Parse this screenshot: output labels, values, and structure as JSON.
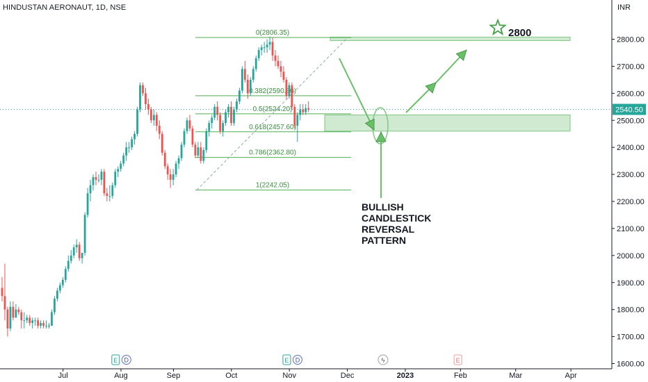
{
  "header": {
    "title": "HINDUSTAN AERONAUT, 1D, NSE",
    "currency": "INR"
  },
  "chart_data": {
    "type": "candlestick",
    "ylim": [
      1600,
      2900
    ],
    "y_ticks": [
      1600,
      1700,
      1800,
      1900,
      2000,
      2100,
      2200,
      2300,
      2400,
      2500,
      2600,
      2700,
      2800
    ],
    "y_tick_labels": [
      "1600.00",
      "1700.00",
      "1800.00",
      "1900.00",
      "2000.00",
      "2100.00",
      "2200.00",
      "2300.00",
      "2400.00",
      "2500.00",
      "2600.00",
      "2700.00",
      "2800.00"
    ],
    "x_labels": [
      "Jul",
      "Aug",
      "Sep",
      "Oct",
      "Nov",
      "Dec",
      "2023",
      "Feb",
      "Mar",
      "Apr"
    ],
    "x_label_positions_idx": [
      12,
      33,
      52,
      73,
      94,
      115,
      136,
      156,
      176,
      196
    ],
    "last_price": "2540.50",
    "colors": {
      "up": "#26a69a",
      "down": "#ef5350",
      "fib": "#4caf50",
      "zone": "#c8e6c9",
      "annotation": "#6abf69",
      "text": "#131722",
      "axis": "#131722"
    },
    "candles": [
      [
        1880,
        1920,
        1830,
        1850
      ],
      [
        1850,
        1970,
        1760,
        1800
      ],
      [
        1800,
        1810,
        1700,
        1730
      ],
      [
        1730,
        1830,
        1720,
        1810
      ],
      [
        1810,
        1830,
        1760,
        1770
      ],
      [
        1770,
        1820,
        1770,
        1800
      ],
      [
        1800,
        1810,
        1780,
        1790
      ],
      [
        1790,
        1800,
        1730,
        1760
      ],
      [
        1760,
        1790,
        1730,
        1760
      ],
      [
        1760,
        1780,
        1750,
        1770
      ],
      [
        1770,
        1780,
        1740,
        1750
      ],
      [
        1750,
        1770,
        1730,
        1760
      ],
      [
        1760,
        1770,
        1740,
        1760
      ],
      [
        1760,
        1770,
        1730,
        1740
      ],
      [
        1740,
        1760,
        1730,
        1750
      ],
      [
        1750,
        1760,
        1730,
        1740
      ],
      [
        1740,
        1760,
        1730,
        1740
      ],
      [
        1740,
        1750,
        1730,
        1740
      ],
      [
        1740,
        1800,
        1740,
        1790
      ],
      [
        1790,
        1850,
        1780,
        1840
      ],
      [
        1840,
        1880,
        1830,
        1870
      ],
      [
        1870,
        1900,
        1860,
        1890
      ],
      [
        1890,
        1920,
        1880,
        1910
      ],
      [
        1910,
        1960,
        1900,
        1950
      ],
      [
        1950,
        2000,
        1940,
        1980
      ],
      [
        1980,
        2020,
        1970,
        2000
      ],
      [
        2000,
        2040,
        1990,
        2030
      ],
      [
        2030,
        2060,
        2010,
        2040
      ],
      [
        2040,
        2050,
        1980,
        1990
      ],
      [
        1990,
        2010,
        1970,
        2010
      ],
      [
        2010,
        2160,
        2000,
        2150
      ],
      [
        2150,
        2250,
        2140,
        2230
      ],
      [
        2230,
        2280,
        2200,
        2260
      ],
      [
        2260,
        2300,
        2240,
        2290
      ],
      [
        2290,
        2310,
        2260,
        2280
      ],
      [
        2280,
        2300,
        2270,
        2280
      ],
      [
        2280,
        2320,
        2260,
        2310
      ],
      [
        2310,
        2320,
        2220,
        2230
      ],
      [
        2230,
        2250,
        2200,
        2220
      ],
      [
        2220,
        2260,
        2200,
        2220
      ],
      [
        2220,
        2270,
        2210,
        2260
      ],
      [
        2260,
        2320,
        2250,
        2310
      ],
      [
        2310,
        2330,
        2290,
        2320
      ],
      [
        2320,
        2350,
        2310,
        2340
      ],
      [
        2340,
        2380,
        2330,
        2370
      ],
      [
        2370,
        2420,
        2350,
        2400
      ],
      [
        2400,
        2420,
        2380,
        2400
      ],
      [
        2400,
        2440,
        2390,
        2430
      ],
      [
        2430,
        2460,
        2410,
        2450
      ],
      [
        2450,
        2550,
        2440,
        2540
      ],
      [
        2540,
        2640,
        2530,
        2630
      ],
      [
        2630,
        2640,
        2590,
        2600
      ],
      [
        2600,
        2620,
        2540,
        2560
      ],
      [
        2560,
        2580,
        2520,
        2540
      ],
      [
        2540,
        2550,
        2490,
        2500
      ],
      [
        2500,
        2540,
        2480,
        2520
      ],
      [
        2520,
        2530,
        2460,
        2480
      ],
      [
        2480,
        2500,
        2430,
        2450
      ],
      [
        2450,
        2460,
        2370,
        2380
      ],
      [
        2380,
        2390,
        2320,
        2330
      ],
      [
        2330,
        2340,
        2280,
        2300
      ],
      [
        2300,
        2320,
        2250,
        2280
      ],
      [
        2280,
        2320,
        2260,
        2300
      ],
      [
        2300,
        2350,
        2290,
        2340
      ],
      [
        2340,
        2370,
        2320,
        2360
      ],
      [
        2360,
        2420,
        2350,
        2410
      ],
      [
        2410,
        2470,
        2400,
        2460
      ],
      [
        2460,
        2510,
        2450,
        2500
      ],
      [
        2500,
        2520,
        2460,
        2470
      ],
      [
        2470,
        2480,
        2400,
        2410
      ],
      [
        2410,
        2420,
        2360,
        2370
      ],
      [
        2370,
        2420,
        2360,
        2400
      ],
      [
        2400,
        2420,
        2340,
        2350
      ],
      [
        2350,
        2400,
        2340,
        2390
      ],
      [
        2390,
        2470,
        2380,
        2460
      ],
      [
        2460,
        2500,
        2440,
        2490
      ],
      [
        2490,
        2520,
        2470,
        2510
      ],
      [
        2510,
        2560,
        2500,
        2550
      ],
      [
        2550,
        2570,
        2500,
        2520
      ],
      [
        2520,
        2530,
        2450,
        2460
      ],
      [
        2460,
        2500,
        2440,
        2490
      ],
      [
        2490,
        2540,
        2480,
        2530
      ],
      [
        2530,
        2560,
        2510,
        2550
      ],
      [
        2550,
        2570,
        2480,
        2490
      ],
      [
        2490,
        2550,
        2480,
        2540
      ],
      [
        2540,
        2580,
        2530,
        2570
      ],
      [
        2570,
        2620,
        2560,
        2610
      ],
      [
        2610,
        2700,
        2600,
        2690
      ],
      [
        2690,
        2720,
        2640,
        2650
      ],
      [
        2650,
        2670,
        2580,
        2600
      ],
      [
        2600,
        2660,
        2590,
        2650
      ],
      [
        2650,
        2700,
        2640,
        2690
      ],
      [
        2690,
        2740,
        2680,
        2730
      ],
      [
        2730,
        2770,
        2720,
        2760
      ],
      [
        2760,
        2780,
        2740,
        2770
      ],
      [
        2770,
        2790,
        2750,
        2770
      ],
      [
        2770,
        2800,
        2750,
        2780
      ],
      [
        2780,
        2810,
        2760,
        2790
      ],
      [
        2790,
        2806,
        2720,
        2740
      ],
      [
        2740,
        2760,
        2700,
        2720
      ],
      [
        2720,
        2740,
        2690,
        2700
      ],
      [
        2700,
        2720,
        2660,
        2680
      ],
      [
        2680,
        2700,
        2640,
        2650
      ],
      [
        2650,
        2660,
        2580,
        2590
      ],
      [
        2590,
        2640,
        2580,
        2630
      ],
      [
        2630,
        2640,
        2540,
        2550
      ],
      [
        2550,
        2560,
        2470,
        2480
      ],
      [
        2480,
        2530,
        2420,
        2520
      ],
      [
        2520,
        2560,
        2500,
        2540
      ],
      [
        2540,
        2560,
        2520,
        2530
      ],
      [
        2530,
        2560,
        2520,
        2545
      ],
      [
        2545,
        2570,
        2530,
        2540
      ]
    ],
    "fib_levels": [
      {
        "label": "0(2806.35)",
        "value": 2806.35
      },
      {
        "label": "0.382(2590.80)",
        "value": 2590.8
      },
      {
        "label": "0.5(2524.20)",
        "value": 2524.2
      },
      {
        "label": "0.618(2457.60)",
        "value": 2457.6
      },
      {
        "label": "0.786(2362.80)",
        "value": 2362.8
      },
      {
        "label": "1(2242.05)",
        "value": 2242.05
      }
    ],
    "support_zone": [
      2460,
      2520
    ],
    "target_zone": [
      2795,
      2808
    ],
    "target_label": "2800",
    "pattern_label": [
      "BULLISH",
      "CANDLESTICK",
      "REVERSAL",
      "PATTERN"
    ],
    "event_markers": [
      {
        "idx": 40,
        "letters": [
          "E",
          "D"
        ]
      },
      {
        "idx": 102,
        "letters": [
          "E",
          "D"
        ]
      },
      {
        "idx": 137,
        "letters": [
          "⚡"
        ]
      },
      {
        "idx": 164,
        "letters": [
          "E"
        ]
      }
    ]
  }
}
